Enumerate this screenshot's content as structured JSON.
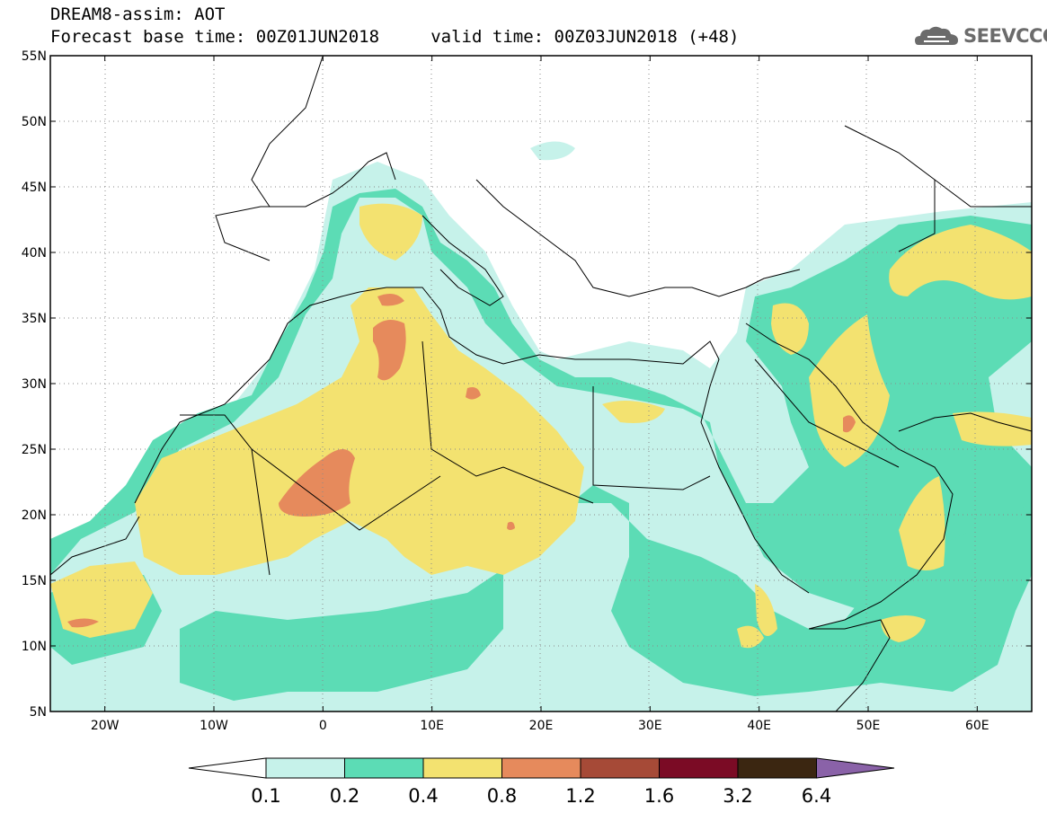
{
  "header": {
    "line1": "DREAM8-assim: AOT",
    "line2": "Forecast base time: 00Z01JUN2018     valid time: 00Z03JUN2018 (+48)"
  },
  "logo": {
    "text": "SEEVCCC",
    "icon": "cloud-icon",
    "color": "#6b6b6b"
  },
  "map": {
    "lon_range": [
      -25,
      65
    ],
    "lat_range": [
      5,
      55
    ],
    "lat_ticks": [
      {
        "value": 55,
        "label": "55N"
      },
      {
        "value": 50,
        "label": "50N"
      },
      {
        "value": 45,
        "label": "45N"
      },
      {
        "value": 40,
        "label": "40N"
      },
      {
        "value": 35,
        "label": "35N"
      },
      {
        "value": 30,
        "label": "30N"
      },
      {
        "value": 25,
        "label": "25N"
      },
      {
        "value": 20,
        "label": "20N"
      },
      {
        "value": 15,
        "label": "15N"
      },
      {
        "value": 10,
        "label": "10N"
      },
      {
        "value": 5,
        "label": "5N"
      }
    ],
    "lon_ticks": [
      {
        "value": -20,
        "label": "20W"
      },
      {
        "value": -10,
        "label": "10W"
      },
      {
        "value": 0,
        "label": "0"
      },
      {
        "value": 10,
        "label": "10E"
      },
      {
        "value": 20,
        "label": "20E"
      },
      {
        "value": 30,
        "label": "30E"
      },
      {
        "value": 40,
        "label": "40E"
      },
      {
        "value": 50,
        "label": "50E"
      },
      {
        "value": 60,
        "label": "60E"
      }
    ]
  },
  "colorbar": {
    "labels": [
      "0.1",
      "0.2",
      "0.4",
      "0.8",
      "1.2",
      "1.6",
      "3.2",
      "6.4"
    ],
    "colors": [
      "#ffffff",
      "#c6f2ea",
      "#5cdcb5",
      "#f3e270",
      "#e68a5c",
      "#a64a37",
      "#7b0b25",
      "#3b2611",
      "#8a62a8"
    ]
  }
}
